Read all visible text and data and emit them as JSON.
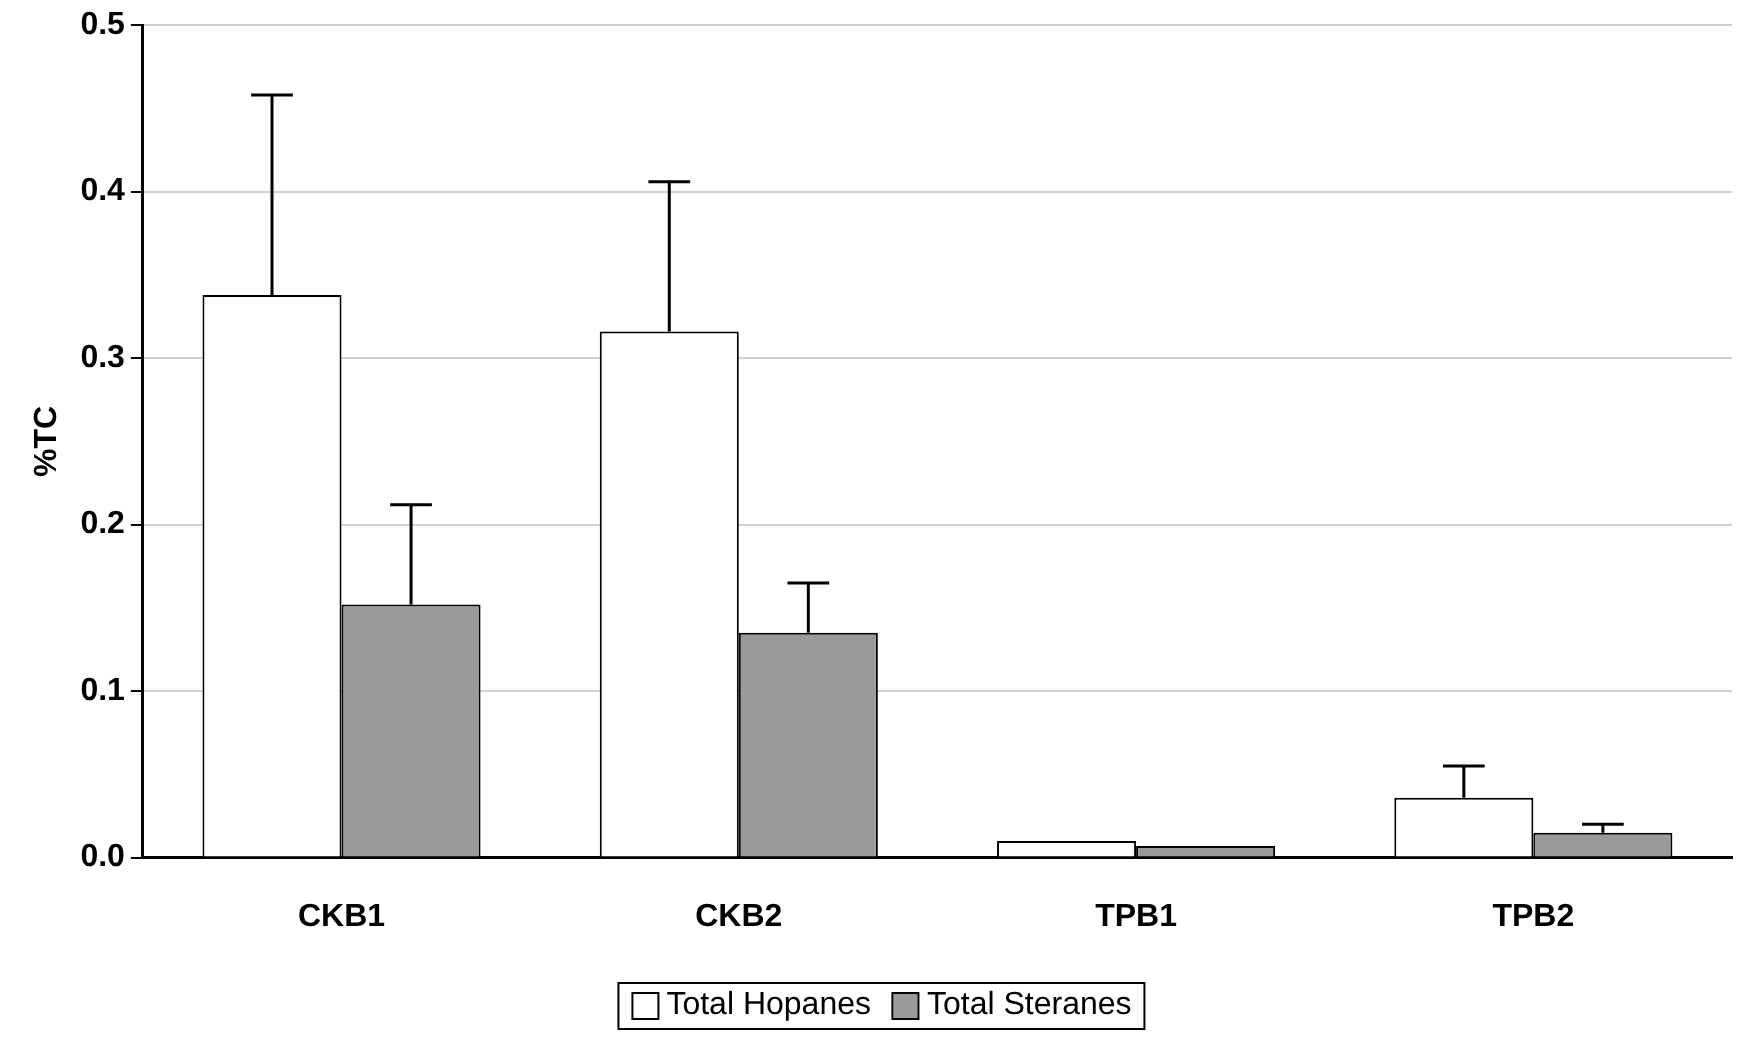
{
  "chart_data": {
    "type": "bar",
    "ylabel": "%TC",
    "categories": [
      "CKB1",
      "CKB2",
      "TPB1",
      "TPB2"
    ],
    "series": [
      {
        "name": "Total Hopanes",
        "color": "#ffffff",
        "values": [
          0.338,
          0.316,
          0.01,
          0.036
        ],
        "errors": [
          [
            0.338,
            0.458
          ],
          [
            0.316,
            0.406
          ],
          null,
          [
            0.036,
            0.055
          ]
        ]
      },
      {
        "name": "Total Steranes",
        "color": "#9a9a9a",
        "values": [
          0.152,
          0.135,
          0.007,
          0.015
        ],
        "errors": [
          [
            0.152,
            0.212
          ],
          [
            0.135,
            0.165
          ],
          null,
          [
            0.015,
            0.02
          ]
        ]
      }
    ],
    "ylim": [
      0,
      0.5
    ],
    "yticks": [
      {
        "value": 0,
        "label": "0.0"
      },
      {
        "value": 0.1,
        "label": "0.1"
      },
      {
        "value": 0.2,
        "label": "0.2"
      },
      {
        "value": 0.3,
        "label": "0.3"
      },
      {
        "value": 0.4,
        "label": "0.4"
      },
      {
        "value": 0.5,
        "label": "0.5"
      }
    ],
    "grid": "y",
    "legend": "bottom"
  }
}
